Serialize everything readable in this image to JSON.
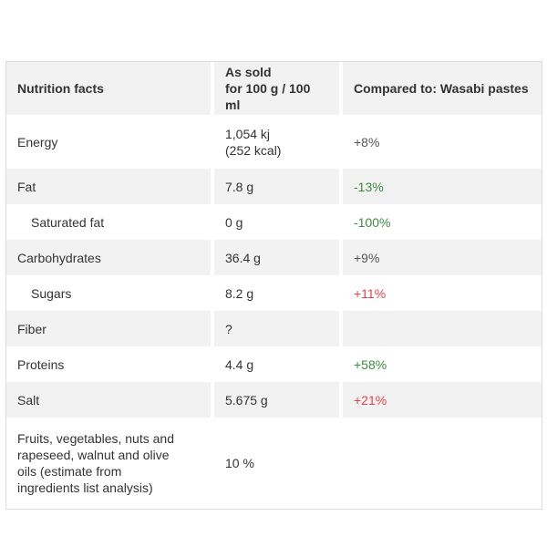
{
  "table": {
    "headers": {
      "col1": "Nutrition facts",
      "col2_line1": "As sold",
      "col2_line2": "for 100 g / 100 ml",
      "col3": "Compared to: Wasabi pastes"
    },
    "rows": [
      {
        "label": "Energy",
        "value_line1": "1,054 kj",
        "value_line2": "(252 kcal)",
        "compare": "+8%",
        "compare_status": "neutral"
      },
      {
        "label": "Fat",
        "value": "7.8 g",
        "compare": "-13%",
        "compare_status": "good"
      },
      {
        "label": "Saturated fat",
        "value": "0 g",
        "compare": "-100%",
        "compare_status": "good"
      },
      {
        "label": "Carbohydrates",
        "value": "36.4 g",
        "compare": "+9%",
        "compare_status": "neutral"
      },
      {
        "label": "Sugars",
        "value": "8.2 g",
        "compare": "+11%",
        "compare_status": "bad"
      },
      {
        "label": "Fiber",
        "value": "?",
        "compare": ""
      },
      {
        "label": "Proteins",
        "value": "4.4 g",
        "compare": "+58%",
        "compare_status": "good"
      },
      {
        "label": "Salt",
        "value": "5.675 g",
        "compare": "+21%",
        "compare_status": "bad"
      },
      {
        "label": "Fruits, vegetables, nuts and\nrapeseed, walnut and olive\noils (estimate from\ningredients list analysis)",
        "value": "10 %",
        "compare": ""
      }
    ]
  },
  "colors": {
    "good": "#3c8a43",
    "bad": "#e0434b",
    "neutral": "#555555",
    "header_bg": "#f2f2f2"
  }
}
